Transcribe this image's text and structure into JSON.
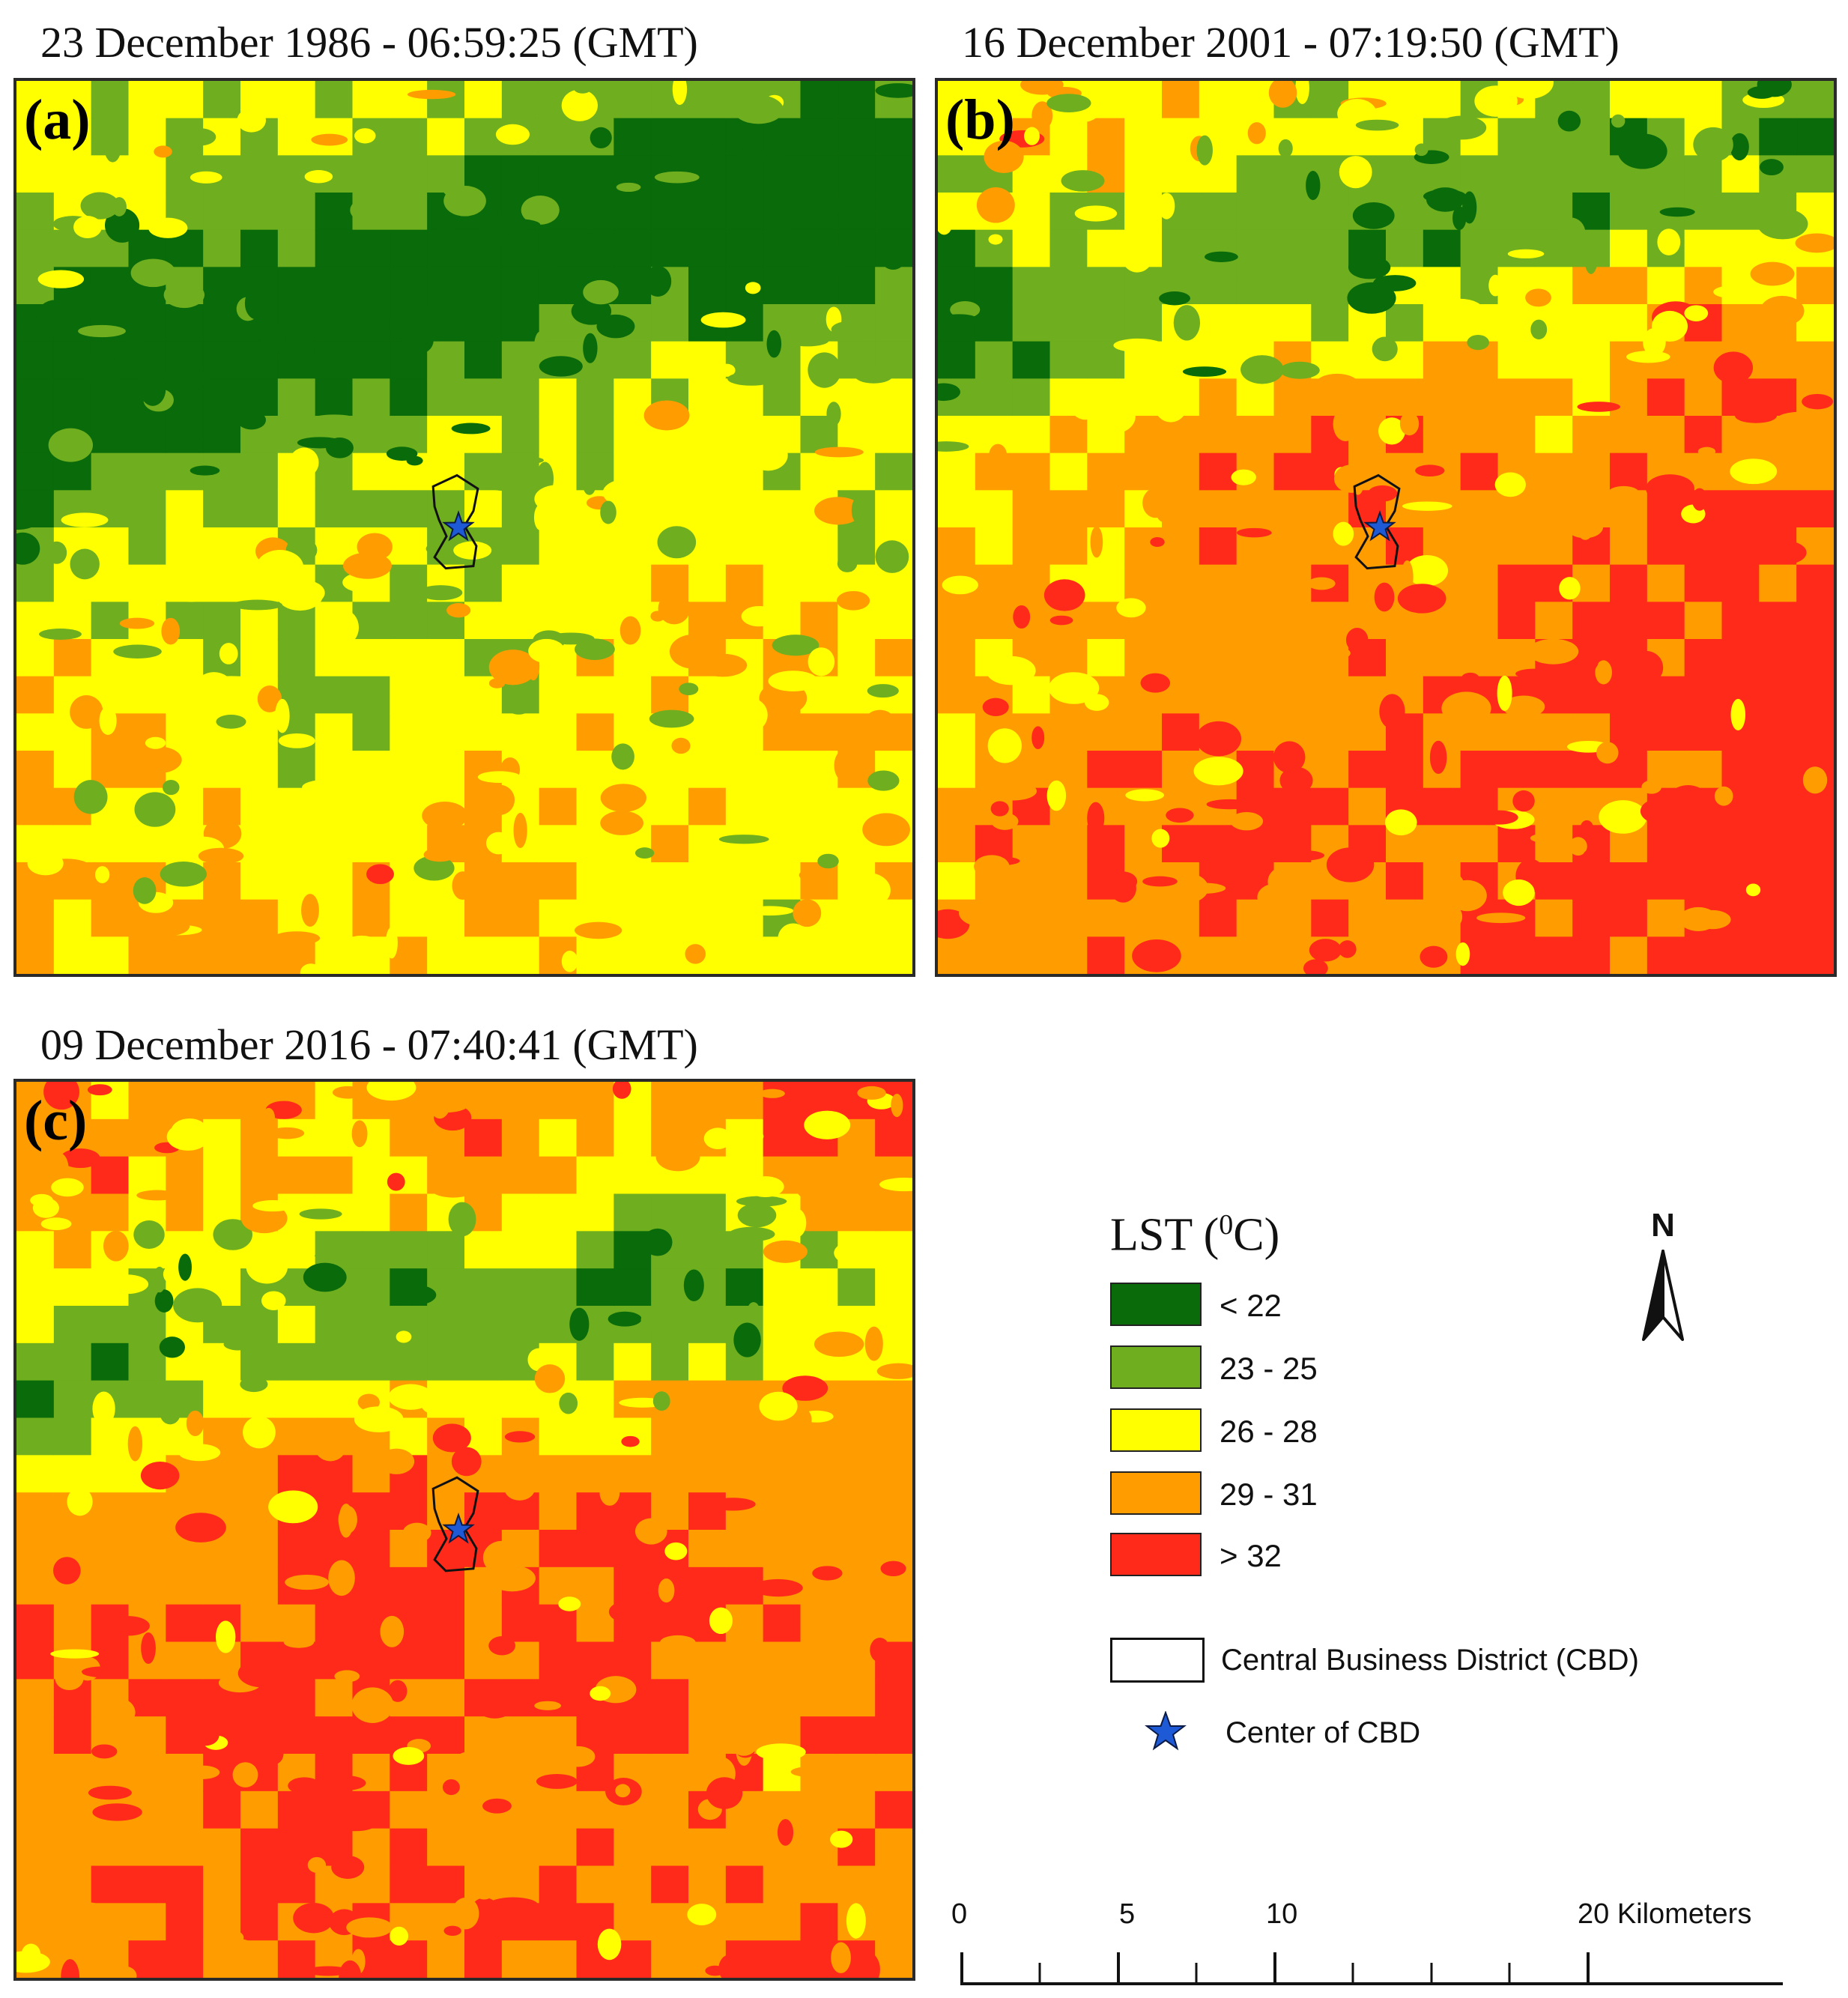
{
  "panels": [
    {
      "id": "a",
      "letter": "(a)",
      "title": "23 December 1986 - 06:59:25  (GMT)"
    },
    {
      "id": "b",
      "letter": "(b)",
      "title": "16 December 2001 - 07:19:50  (GMT)"
    },
    {
      "id": "c",
      "letter": "(c)",
      "title": "09 December 2016 - 07:40:41 (GMT)"
    }
  ],
  "legend": {
    "title_prefix": "LST (",
    "title_sup": "0",
    "title_suffix": "C)",
    "classes": [
      {
        "label": "<  22",
        "color": "#0a6b0a"
      },
      {
        "label": "23 - 25",
        "color": "#6fae1e"
      },
      {
        "label": "26 - 28",
        "color": "#ffff00"
      },
      {
        "label": "29 - 31",
        "color": "#ff9d00"
      },
      {
        "label": "> 32",
        "color": "#ff2a1a"
      }
    ],
    "cbd_label": "Central Business District (CBD)",
    "center_label": "Center of CBD",
    "star_color": "#1e5ad6"
  },
  "north": {
    "label": "N"
  },
  "scale": {
    "labels": [
      "0",
      "5",
      "10",
      "20 Kilometers"
    ]
  }
}
